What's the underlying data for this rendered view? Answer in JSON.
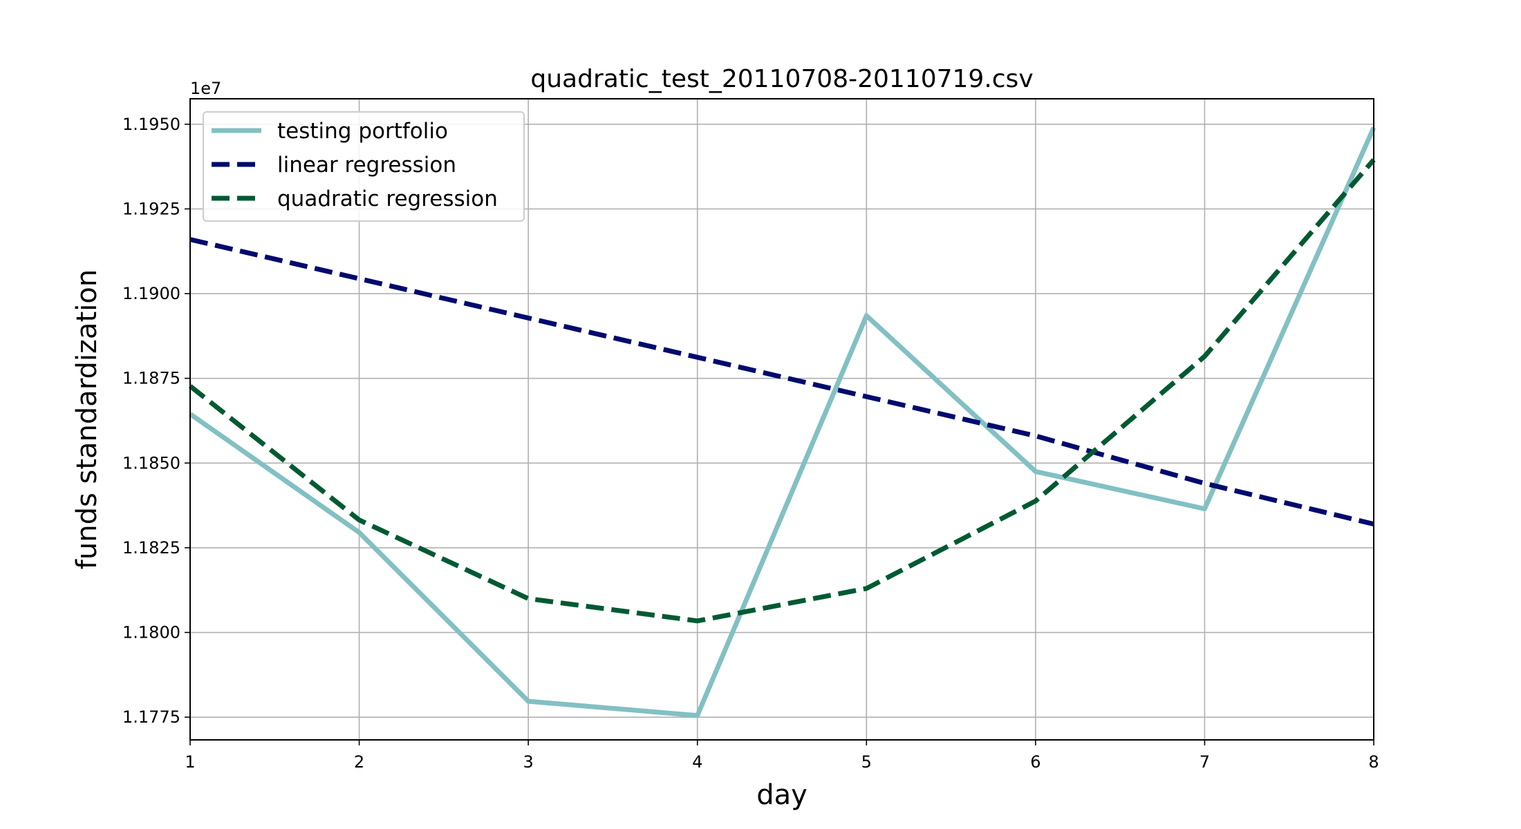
{
  "chart_data": {
    "type": "line",
    "title": "quadratic_test_20110708-20110719.csv",
    "xlabel": "day",
    "ylabel": "funds standardization",
    "y_offset_label": "1e7",
    "xlim": [
      1,
      8
    ],
    "ylim": [
      11.7683,
      11.9575
    ],
    "x_ticks": [
      1,
      2,
      3,
      4,
      5,
      6,
      7,
      8
    ],
    "x_tick_labels": [
      "1",
      "2",
      "3",
      "4",
      "5",
      "6",
      "7",
      "8"
    ],
    "y_ticks": [
      11.775,
      11.8,
      11.825,
      11.85,
      11.875,
      11.9,
      11.925,
      11.95
    ],
    "y_tick_labels": [
      "1.1775",
      "1.1800",
      "1.1825",
      "1.1850",
      "1.1875",
      "1.1900",
      "1.1925",
      "1.1950"
    ],
    "grid": true,
    "legend_position": "top-left",
    "x": [
      1,
      2,
      3,
      4,
      5,
      6,
      7,
      8
    ],
    "series": [
      {
        "name": "testing portfolio",
        "values": [
          11.8645,
          11.8295,
          11.7797,
          11.7755,
          11.8935,
          11.8475,
          11.8365,
          11.949
        ],
        "color": "#82c0c3",
        "dash": "solid"
      },
      {
        "name": "linear regression",
        "values": [
          11.916,
          11.9044,
          11.8928,
          11.8812,
          11.8696,
          11.858,
          11.844,
          11.832
        ],
        "color": "#000a6e",
        "dash": "dashed"
      },
      {
        "name": "quadratic regression",
        "values": [
          11.8727,
          11.8332,
          11.81,
          11.8034,
          11.813,
          11.8388,
          11.8815,
          11.9395
        ],
        "color": "#005a32",
        "dash": "dashed"
      }
    ]
  }
}
